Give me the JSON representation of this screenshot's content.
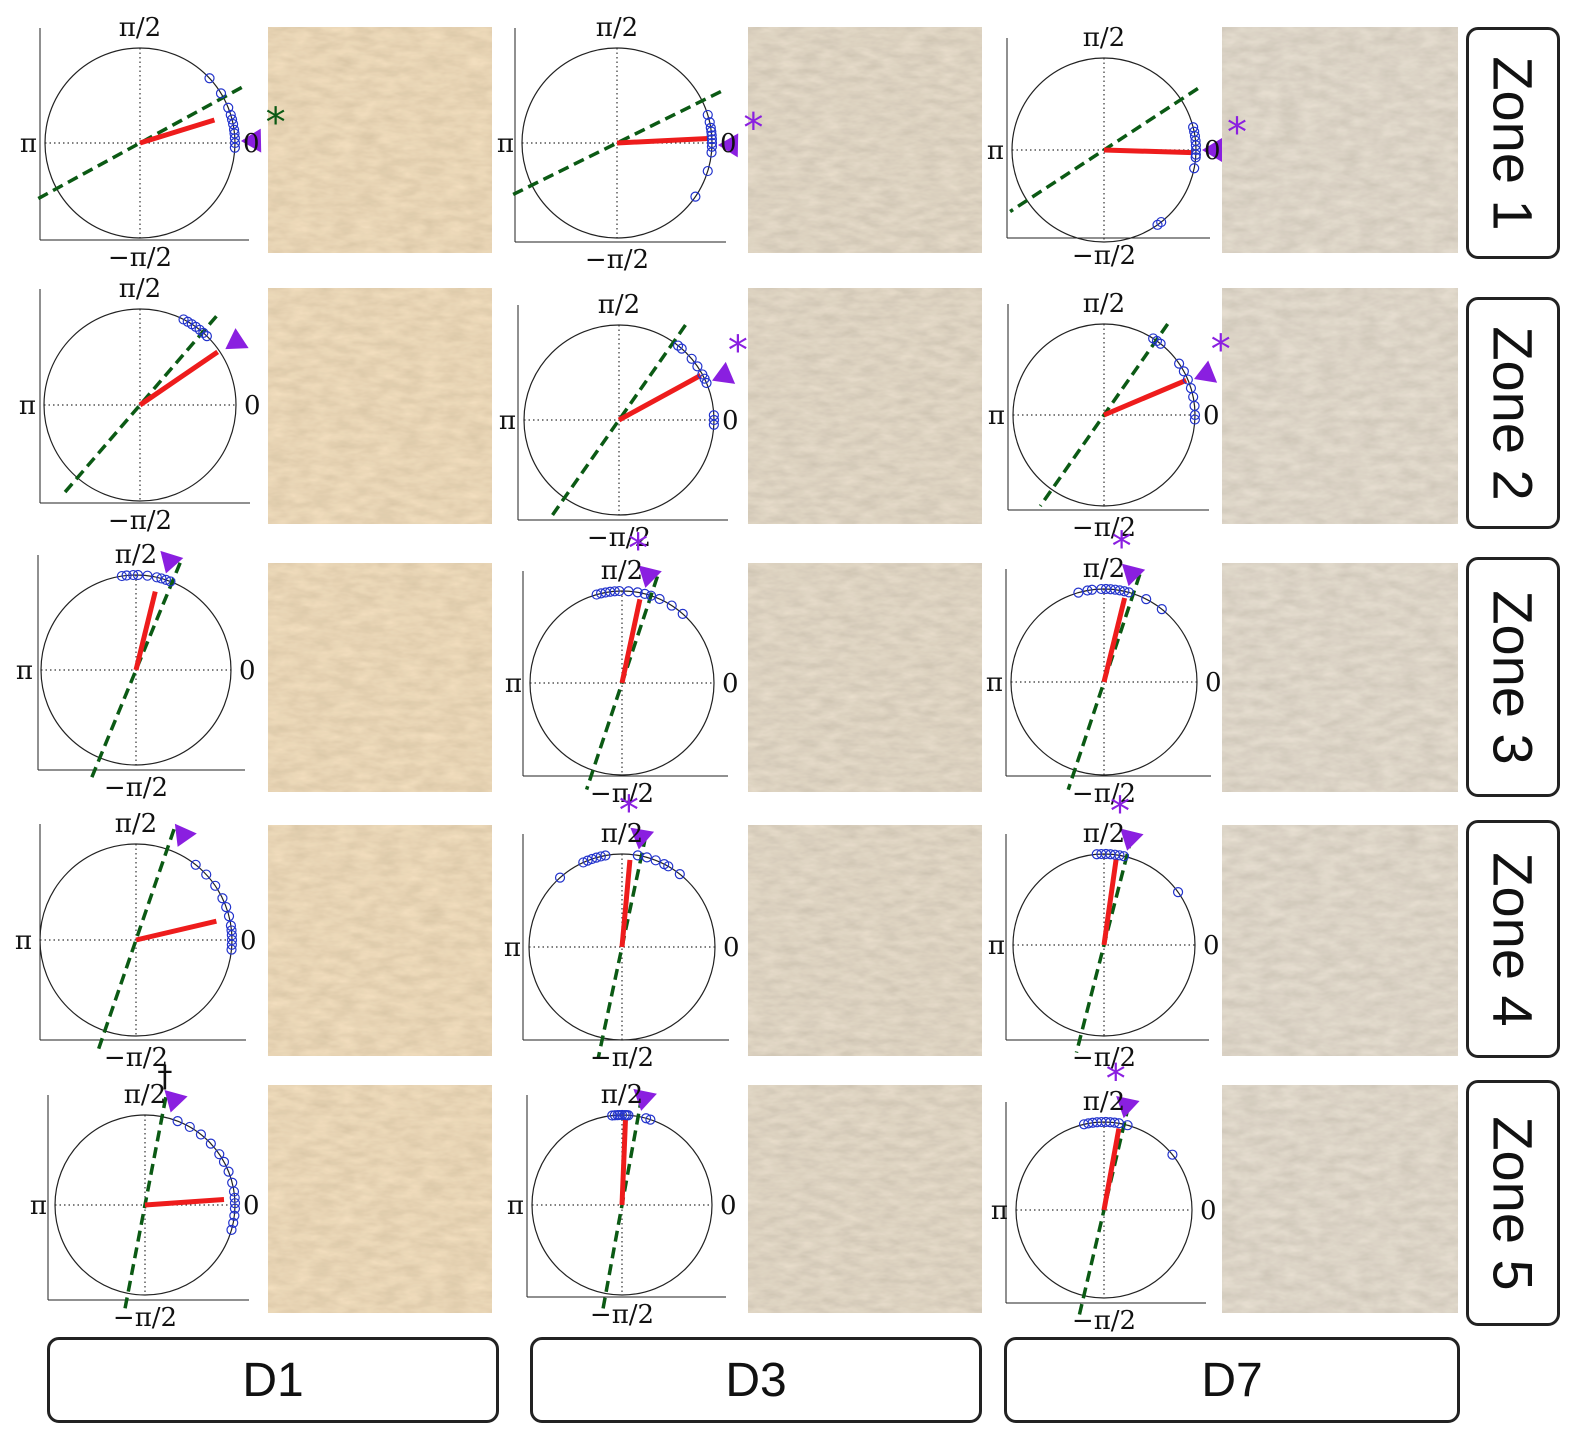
{
  "labels": {
    "columns": [
      "D1",
      "D3",
      "D7"
    ],
    "zones": [
      "Zone 1",
      "Zone 2",
      "Zone 3",
      "Zone 4",
      "Zone 5"
    ]
  },
  "axis_labels": {
    "top": "π/2",
    "left": "π",
    "right": "0",
    "bottom": "−π/2"
  },
  "markers": {
    "significance": "*",
    "dagger": "†"
  },
  "colors": {
    "mean_vector": "#ee1c1c",
    "axis_line": "#0b5a14",
    "points": "#2233cc",
    "arrow": "#8a1fe0",
    "green_star": "#0b5a14",
    "micrograph_d1": "#cdaa80",
    "micrograph_d3": "#b9a791",
    "micrograph_d7": "#b8ab98"
  },
  "chart_data": [
    {
      "type": "scatter",
      "subtype": "polar",
      "column": "D1",
      "zone": "Zone 1",
      "mean_angle": 0.3,
      "mean_length": 0.82,
      "axis_angle": 0.5,
      "arrow_angle": 0.02,
      "points": [
        0.0,
        0.05,
        0.1,
        0.14,
        0.2,
        0.25,
        0.3,
        0.38,
        0.55,
        0.75,
        -0.05
      ],
      "marker": "*",
      "marker_color": "green_star"
    },
    {
      "type": "scatter",
      "subtype": "polar",
      "column": "D3",
      "zone": "Zone 1",
      "mean_angle": 0.05,
      "mean_length": 0.96,
      "axis_angle": 0.46,
      "arrow_angle": -0.02,
      "points": [
        0.0,
        0.04,
        0.08,
        0.12,
        0.16,
        0.22,
        0.3,
        -0.04,
        -0.1,
        -0.3,
        -0.6
      ],
      "marker": "*",
      "marker_color": "arrow"
    },
    {
      "type": "scatter",
      "subtype": "polar",
      "column": "D7",
      "zone": "Zone 1",
      "mean_angle": -0.03,
      "mean_length": 0.96,
      "axis_angle": 0.58,
      "arrow_angle": 0.0,
      "points": [
        0.0,
        0.05,
        0.1,
        0.15,
        0.2,
        0.25,
        -0.05,
        -0.08,
        -0.2,
        -0.9,
        -0.95
      ],
      "marker": "*",
      "marker_color": "arrow"
    },
    {
      "type": "scatter",
      "subtype": "polar",
      "column": "D1",
      "zone": "Zone 2",
      "mean_angle": 0.6,
      "mean_length": 0.98,
      "axis_angle": 0.86,
      "arrow_angle": 0.58,
      "points": [
        0.95,
        1.0,
        1.05,
        1.1,
        0.9,
        0.85,
        0.8
      ],
      "marker": "",
      "marker_color": ""
    },
    {
      "type": "scatter",
      "subtype": "polar",
      "column": "D3",
      "zone": "Zone 2",
      "mean_angle": 0.5,
      "mean_length": 0.98,
      "axis_angle": 0.96,
      "arrow_angle": 0.4,
      "points": [
        0.9,
        0.85,
        0.7,
        0.6,
        0.5,
        0.45,
        0.4,
        0.05,
        0.0,
        -0.05
      ],
      "marker": "*",
      "marker_color": "arrow"
    },
    {
      "type": "scatter",
      "subtype": "polar",
      "column": "D7",
      "zone": "Zone 2",
      "mean_angle": 0.4,
      "mean_length": 0.98,
      "axis_angle": 0.96,
      "arrow_angle": 0.38,
      "points": [
        1.0,
        0.95,
        0.9,
        0.6,
        0.5,
        0.4,
        0.3,
        0.2,
        0.1,
        0.0,
        -0.05
      ],
      "marker": "*",
      "marker_color": "arrow"
    },
    {
      "type": "scatter",
      "subtype": "polar",
      "column": "D1",
      "zone": "Zone 3",
      "mean_angle": 1.33,
      "mean_length": 0.85,
      "axis_angle": 1.18,
      "arrow_angle": 1.27,
      "points": [
        1.72,
        1.67,
        1.6,
        1.55,
        1.45,
        1.35,
        1.3,
        1.25,
        1.2
      ],
      "marker": "",
      "marker_color": ""
    },
    {
      "type": "scatter",
      "subtype": "polar",
      "column": "D3",
      "zone": "Zone 3",
      "mean_angle": 1.36,
      "mean_length": 0.93,
      "axis_angle": 1.25,
      "arrow_angle": 1.33,
      "points": [
        1.85,
        1.8,
        1.75,
        1.7,
        1.65,
        1.6,
        1.5,
        1.4,
        1.32,
        1.25,
        1.15,
        1.0,
        0.85
      ],
      "marker": "*",
      "marker_color": "arrow"
    },
    {
      "type": "scatter",
      "subtype": "polar",
      "column": "D7",
      "zone": "Zone 3",
      "mean_angle": 1.33,
      "mean_length": 0.93,
      "axis_angle": 1.25,
      "arrow_angle": 1.32,
      "points": [
        1.85,
        1.75,
        1.7,
        1.6,
        1.55,
        1.5,
        1.45,
        1.4,
        1.35,
        1.3,
        1.1,
        0.9
      ],
      "marker": "*",
      "marker_color": "arrow"
    },
    {
      "type": "scatter",
      "subtype": "polar",
      "column": "D1",
      "zone": "Zone 4",
      "mean_angle": 0.23,
      "mean_length": 0.86,
      "axis_angle": 1.24,
      "arrow_angle": 1.15,
      "points": [
        0.9,
        0.75,
        0.6,
        0.45,
        0.35,
        0.25,
        0.15,
        0.1,
        0.05,
        0.0,
        -0.05,
        -0.1
      ],
      "marker": "",
      "marker_color": ""
    },
    {
      "type": "scatter",
      "subtype": "polar",
      "column": "D3",
      "zone": "Zone 4",
      "mean_angle": 1.48,
      "mean_length": 0.94,
      "axis_angle": 1.36,
      "arrow_angle": 1.4,
      "points": [
        2.3,
        2.0,
        1.95,
        1.9,
        1.85,
        1.8,
        1.75,
        1.4,
        1.3,
        1.2,
        1.1,
        1.05,
        0.9
      ],
      "marker": "*",
      "marker_color": "arrow"
    },
    {
      "type": "scatter",
      "subtype": "polar",
      "column": "D7",
      "zone": "Zone 4",
      "mean_angle": 1.43,
      "mean_length": 0.95,
      "axis_angle": 1.32,
      "arrow_angle": 1.33,
      "points": [
        1.65,
        1.6,
        1.55,
        1.5,
        1.45,
        1.4,
        1.35,
        0.62
      ],
      "marker": "*",
      "marker_color": "arrow"
    },
    {
      "type": "scatter",
      "subtype": "polar",
      "column": "D1",
      "zone": "Zone 5",
      "mean_angle": 0.07,
      "mean_length": 0.88,
      "axis_angle": 1.38,
      "arrow_angle": 1.3,
      "points": [
        1.2,
        1.05,
        0.9,
        0.75,
        0.6,
        0.5,
        0.38,
        0.25,
        0.15,
        0.08,
        0.02,
        -0.04,
        -0.12,
        -0.2,
        -0.28
      ],
      "marker": "†",
      "marker_color": "text"
    },
    {
      "type": "scatter",
      "subtype": "polar",
      "column": "D3",
      "zone": "Zone 5",
      "mean_angle": 1.53,
      "mean_length": 0.95,
      "axis_angle": 1.39,
      "arrow_angle": 1.37,
      "points": [
        1.68,
        1.65,
        1.62,
        1.6,
        1.57,
        1.54,
        1.52,
        1.5,
        1.3,
        1.25
      ],
      "marker": "",
      "marker_color": ""
    },
    {
      "type": "scatter",
      "subtype": "polar",
      "column": "D7",
      "zone": "Zone 5",
      "mean_angle": 1.39,
      "mean_length": 0.94,
      "axis_angle": 1.34,
      "arrow_angle": 1.36,
      "points": [
        1.8,
        1.75,
        1.7,
        1.65,
        1.6,
        1.55,
        1.5,
        1.45,
        1.4,
        1.3,
        0.68
      ],
      "marker": "*",
      "marker_color": "arrow"
    }
  ]
}
